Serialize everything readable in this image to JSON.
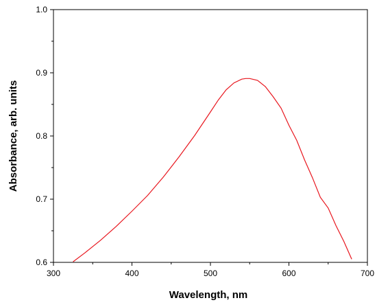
{
  "chart_data": {
    "type": "line",
    "title": "",
    "xlabel": "Wavelength, nm",
    "ylabel": "Absorbance, arb. units",
    "xlim": [
      300,
      700
    ],
    "ylim": [
      0.6,
      1.0
    ],
    "x_ticks": [
      300,
      400,
      500,
      600,
      700
    ],
    "x_tick_labels": [
      "300",
      "400",
      "500",
      "600",
      "700"
    ],
    "y_ticks": [
      0.6,
      0.7,
      0.8,
      0.9,
      1.0
    ],
    "y_tick_labels": [
      "0.6",
      "0.7",
      "0.8",
      "0.9",
      "1.0"
    ],
    "grid": false,
    "legend": "none",
    "series": [
      {
        "color": "#e8161e",
        "x": [
          325,
          340,
          360,
          380,
          400,
          420,
          440,
          460,
          480,
          500,
          510,
          520,
          530,
          540,
          545,
          550,
          560,
          570,
          580,
          590,
          600,
          610,
          620,
          630,
          640,
          650,
          660,
          670,
          680
        ],
        "y": [
          0.601,
          0.615,
          0.635,
          0.657,
          0.681,
          0.706,
          0.735,
          0.767,
          0.801,
          0.838,
          0.857,
          0.873,
          0.884,
          0.89,
          0.891,
          0.891,
          0.888,
          0.878,
          0.862,
          0.844,
          0.817,
          0.793,
          0.762,
          0.734,
          0.703,
          0.686,
          0.658,
          0.633,
          0.605
        ]
      }
    ]
  }
}
